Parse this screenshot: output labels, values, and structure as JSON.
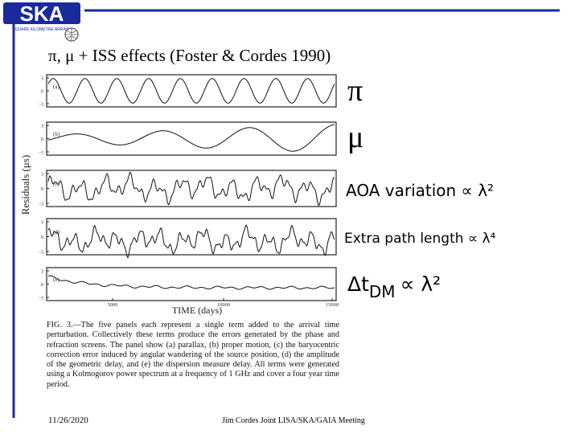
{
  "logo": {
    "name": "SKA",
    "subtitle": "SQUARE KILOMETRE ARRAY"
  },
  "header": {
    "title": "π, μ + ISS effects (Foster & Cordes 1990)"
  },
  "figure": {
    "y_label": "Residuals (μs)",
    "x_label": "TIME (days)",
    "x_ticks": [
      "5000",
      "10000",
      "15000"
    ],
    "panels": [
      {
        "label": "(a)",
        "y_ticks": [
          "3",
          "0",
          "-3"
        ]
      },
      {
        "label": "(b)",
        "y_ticks": [
          "3",
          "0",
          "-3"
        ]
      },
      {
        "label": "(c)",
        "y_ticks": [
          "3",
          "0",
          "-3"
        ]
      },
      {
        "label": "(d)",
        "y_ticks": [
          "3",
          "0",
          "-3"
        ]
      },
      {
        "label": "(e)",
        "y_ticks": [
          "3",
          "0",
          "-3"
        ]
      }
    ]
  },
  "annotations": {
    "pi": "π",
    "mu": "μ",
    "aoa": "AOA variation ∝ λ²",
    "path": "Extra path length ∝ λ⁴",
    "dm": {
      "symbol": "Δt",
      "subscript": "DM",
      "scaling": "∝ λ²"
    }
  },
  "caption": "FIG. 3.—The five panels each represent a single term added to the arrival time perturbation. Collectively these terms produce the errors generated by the phase and refraction screens. The panel show (a) parallax, (b) proper motion, (c) the baryocentric correction error induced by angular wandering of the source position, (d) the amplitude of the geometric delay, and (e) the dispersion measure delay. All terms were generated using a Kolmogorov power spectrum at a frequency of 1 GHz and cover a four year time period.",
  "footer": {
    "date": "11/26/2020",
    "center": "Jim Cordes   Joint LISA/SKA/GAIA Meeting"
  }
}
